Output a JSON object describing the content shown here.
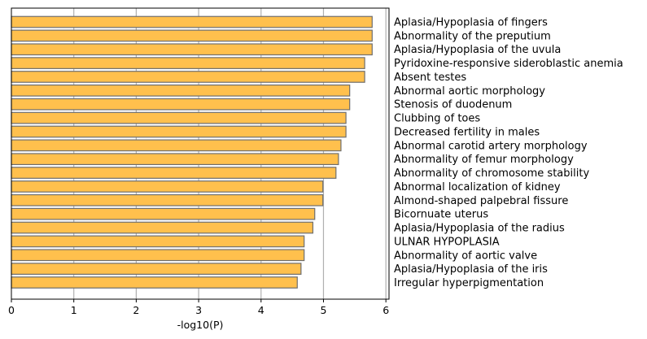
{
  "chart_data": {
    "type": "bar",
    "orientation": "horizontal",
    "xlabel": "-log10(P)",
    "xlim": [
      0,
      6.05
    ],
    "xticks": [
      "0",
      "1",
      "2",
      "3",
      "4",
      "5",
      "6"
    ],
    "grid": "vertical",
    "category_labels_side": "right",
    "bar_color": "#FFC04D",
    "bar_edge_color": "#6E6E6E",
    "grid_color": "#B0B0B0",
    "categories": [
      "Aplasia/Hypoplasia of fingers",
      "Abnormality of the preputium",
      "Aplasia/Hypoplasia of the uvula",
      "Pyridoxine-responsive sideroblastic anemia",
      "Absent testes",
      "Abnormal aortic morphology",
      "Stenosis of duodenum",
      "Clubbing of toes",
      "Decreased fertility in males",
      "Abnormal carotid artery morphology",
      "Abnormality of femur morphology",
      "Abnormality of chromosome stability",
      "Abnormal localization of kidney",
      "Almond-shaped palpebral fissure",
      "Bicornuate uterus",
      "Aplasia/Hypoplasia of the radius",
      "ULNAR HYPOPLASIA",
      "Abnormality of aortic valve",
      "Aplasia/Hypoplasia of the iris",
      "Irregular hyperpigmentation"
    ],
    "values": [
      5.78,
      5.78,
      5.78,
      5.66,
      5.66,
      5.42,
      5.42,
      5.36,
      5.36,
      5.28,
      5.24,
      5.2,
      4.99,
      4.99,
      4.86,
      4.83,
      4.69,
      4.69,
      4.64,
      4.58
    ]
  }
}
